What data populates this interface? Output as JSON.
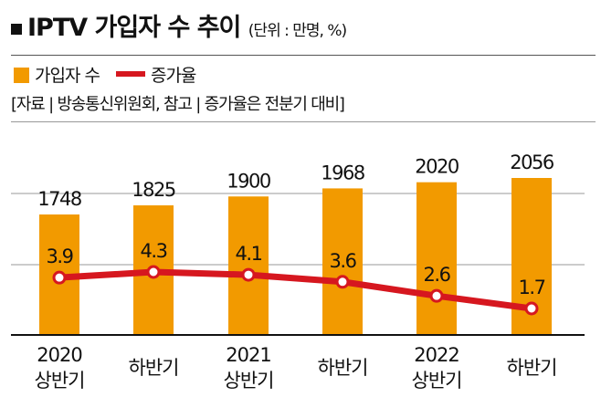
{
  "title": "IPTV 가입자 수 추이",
  "unit": "(단위 : 만명, %)",
  "source": "[자료 | 방송통신위원회, 참고 | 증가율은 전분기 대비]",
  "chart_data": {
    "type": "bar+line",
    "categories": [
      [
        "2020",
        "상반기"
      ],
      [
        "하반기",
        ""
      ],
      [
        "2021",
        "상반기"
      ],
      [
        "하반기",
        ""
      ],
      [
        "2022",
        "상반기"
      ],
      [
        "하반기",
        ""
      ]
    ],
    "series": [
      {
        "name": "가입자 수",
        "type": "bar",
        "color": "#f29a00",
        "values": [
          1748,
          1825,
          1900,
          1968,
          2020,
          2056
        ]
      },
      {
        "name": "증가율",
        "type": "line",
        "color": "#d6171f",
        "values": [
          3.9,
          4.3,
          4.1,
          3.6,
          2.6,
          1.7
        ]
      }
    ],
    "grid": true,
    "legend": "top-left"
  }
}
